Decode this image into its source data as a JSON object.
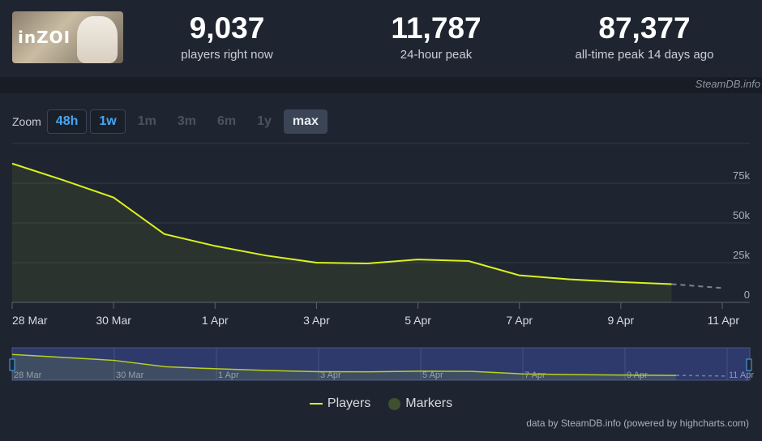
{
  "game": {
    "logo_text": "inZOI"
  },
  "stats": [
    {
      "value": "9,037",
      "label": "players right now"
    },
    {
      "value": "11,787",
      "label": "24-hour peak"
    },
    {
      "value": "87,377",
      "label": "all-time peak 14 days ago"
    }
  ],
  "source_top": "SteamDB.info",
  "zoom": {
    "label": "Zoom",
    "buttons": [
      "48h",
      "1w",
      "1m",
      "3m",
      "6m",
      "1y",
      "max"
    ]
  },
  "legend": {
    "players": "Players",
    "markers": "Markers"
  },
  "credit": "data by SteamDB.info (powered by highcharts.com)",
  "colors": {
    "series": "#d9f21f",
    "markers": "#3f5030",
    "background": "#1f2530",
    "accent": "#47a6f0"
  },
  "chart_data": {
    "type": "line",
    "series": [
      {
        "name": "Players",
        "values": [
          {
            "x": "2025-03-28",
            "y": 87377
          },
          {
            "x": "2025-03-29",
            "y": 77000
          },
          {
            "x": "2025-03-30",
            "y": 66000
          },
          {
            "x": "2025-03-31",
            "y": 43000
          },
          {
            "x": "2025-04-01",
            "y": 35500
          },
          {
            "x": "2025-04-02",
            "y": 29500
          },
          {
            "x": "2025-04-03",
            "y": 25000
          },
          {
            "x": "2025-04-04",
            "y": 24500
          },
          {
            "x": "2025-04-05",
            "y": 27000
          },
          {
            "x": "2025-04-06",
            "y": 26000
          },
          {
            "x": "2025-04-07",
            "y": 17000
          },
          {
            "x": "2025-04-08",
            "y": 14500
          },
          {
            "x": "2025-04-09",
            "y": 12800
          },
          {
            "x": "2025-04-10",
            "y": 11500
          }
        ]
      }
    ],
    "projection": [
      {
        "x": "2025-04-10",
        "y": 11500
      },
      {
        "x": "2025-04-11",
        "y": 9037
      }
    ],
    "x_ticks": [
      "28 Mar",
      "30 Mar",
      "1 Apr",
      "3 Apr",
      "5 Apr",
      "7 Apr",
      "9 Apr",
      "11 Apr"
    ],
    "y_ticks": [
      "0",
      "25k",
      "50k",
      "75k"
    ],
    "ylim": [
      0,
      100000
    ],
    "xlim": [
      "2025-03-28",
      "2025-04-11"
    ],
    "grid": true,
    "legend_position": "bottom"
  }
}
